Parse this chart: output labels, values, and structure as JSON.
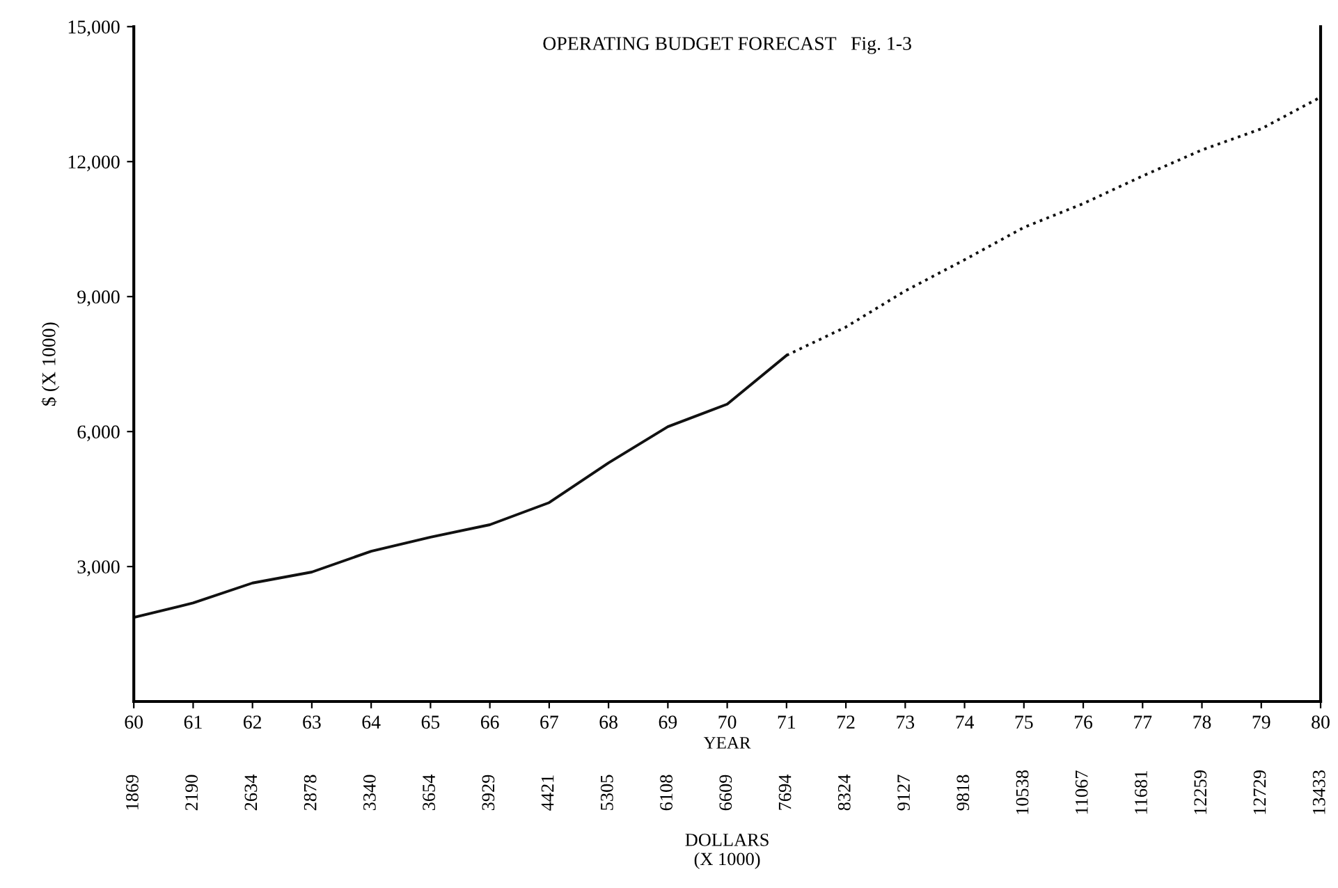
{
  "chart_data": {
    "type": "line",
    "title": "OPERATING BUDGET FORECAST   Fig. 1-3",
    "xlabel": "YEAR",
    "ylabel": "$ (X 1000)",
    "series": [
      {
        "x": [
          60,
          61,
          62,
          63,
          64,
          65,
          66,
          67,
          68,
          69,
          70,
          71
        ],
        "values": [
          1869,
          2190,
          2634,
          2878,
          3340,
          3654,
          3929,
          4421,
          5305,
          6108,
          6609,
          7694
        ],
        "color": "#111111",
        "line_style": "solid"
      },
      {
        "x": [
          71,
          72,
          73,
          74,
          75,
          76,
          77,
          78,
          79,
          80
        ],
        "values": [
          7694,
          8324,
          9127,
          9818,
          10538,
          11067,
          11681,
          12259,
          12729,
          13433
        ],
        "color": "#111111",
        "line_style": "dotted"
      }
    ],
    "annotations": [
      "DOLLARS\n(X 1000)",
      "1869",
      "2190",
      "2634",
      "2878",
      "3340",
      "3654",
      "3929",
      "4421",
      "5305",
      "6108",
      "6609",
      "7694",
      "8324",
      "9127",
      "9818",
      "10538",
      "11067",
      "11681",
      "12259",
      "12729",
      "13433"
    ],
    "xlim": [
      60,
      80
    ],
    "xticks": [
      60,
      61,
      62,
      63,
      64,
      65,
      66,
      67,
      68,
      69,
      70,
      71,
      72,
      73,
      74,
      75,
      76,
      77,
      78,
      79,
      80
    ],
    "ylim": [
      0,
      15000
    ],
    "yticks": [
      {
        "value": 3000,
        "label": "3,000"
      },
      {
        "value": 6000,
        "label": "6,000"
      },
      {
        "value": 9000,
        "label": "9,000"
      },
      {
        "value": 12000,
        "label": "12,000"
      },
      {
        "value": 15000,
        "label": "15,000"
      }
    ],
    "grid": false,
    "marker": "none"
  }
}
